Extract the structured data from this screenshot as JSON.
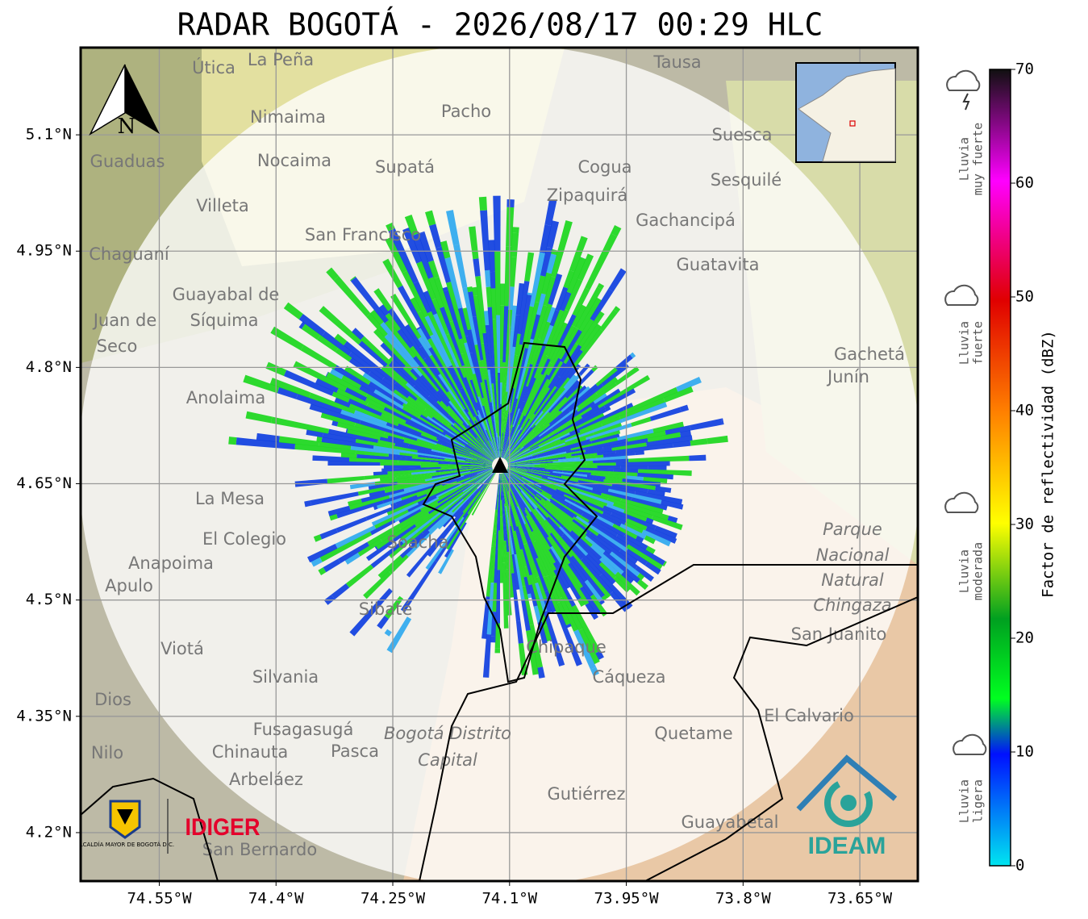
{
  "header": {
    "title": "RADAR BOGOTÁ - 2026/08/17 00:29 HLC"
  },
  "map": {
    "xlim": [
      -74.651,
      -73.5755
    ],
    "ylim": [
      4.1375,
      5.2125
    ],
    "xticks": [
      {
        "value": -74.55,
        "label": "74.55°W"
      },
      {
        "value": -74.4,
        "label": "74.4°W"
      },
      {
        "value": -74.25,
        "label": "74.25°W"
      },
      {
        "value": -74.1,
        "label": "74.1°W"
      },
      {
        "value": -73.95,
        "label": "73.95°W"
      },
      {
        "value": -73.8,
        "label": "73.8°W"
      },
      {
        "value": -73.65,
        "label": "73.65°W"
      }
    ],
    "yticks": [
      {
        "value": 5.1,
        "label": "5.1°N"
      },
      {
        "value": 4.95,
        "label": "4.95°N"
      },
      {
        "value": 4.8,
        "label": "4.8°N"
      },
      {
        "value": 4.65,
        "label": "4.65°N"
      },
      {
        "value": 4.5,
        "label": "4.5°N"
      },
      {
        "value": 4.35,
        "label": "4.35°N"
      },
      {
        "value": 4.2,
        "label": "4.2°N"
      }
    ],
    "north_label": "N",
    "places": [
      "Útica",
      "La Peña",
      "Tausa",
      "Nimaima",
      "Pacho",
      "Guaduas",
      "Nocaima",
      "Supatá",
      "Cogua",
      "Suesca",
      "Zipaquirá",
      "Sesquilé",
      "Villeta",
      "Gachancipá",
      "San Francisco",
      "Chaguaní",
      "Guatavita",
      "Guayabal de",
      "Síquima",
      "Juan de",
      "Seco",
      "Gachetá",
      "Junín",
      "Anolaima",
      "La Mesa",
      "El Colegio",
      "Soacha",
      "Anapoima",
      "Apulo",
      "Parque",
      "Nacional",
      "Natural",
      "Chingaza",
      "San Juanito",
      "Sibaté",
      "Chipaque",
      "Viotá",
      "Cáqueza",
      "Silvania",
      "Dios",
      "El Calvario",
      "Fusagasugá",
      "Bogotá Distrito",
      "Capital",
      "Quetame",
      "Nilo",
      "Chinauta",
      "Pasca",
      "Arbeláez",
      "Gutiérrez",
      "Guayabetal",
      "San Bernardo"
    ],
    "logos": {
      "alcaldia": "ALCALDÍA MAYOR DE BOGOTÁ D.C.",
      "idiger": "IDIGER",
      "ideam": "IDEAM"
    }
  },
  "colorbar": {
    "label": "Factor de reflectividad (dBZ)",
    "lim": [
      0,
      70
    ],
    "ticks": [
      0,
      10,
      20,
      30,
      40,
      50,
      60,
      70
    ],
    "categories": [
      [
        "Lluvia",
        "ligera"
      ],
      [
        "Lluvia",
        "moderada"
      ],
      [
        "Lluvia",
        "fuerte"
      ],
      [
        "Lluvia",
        "muy fuerte"
      ]
    ]
  }
}
